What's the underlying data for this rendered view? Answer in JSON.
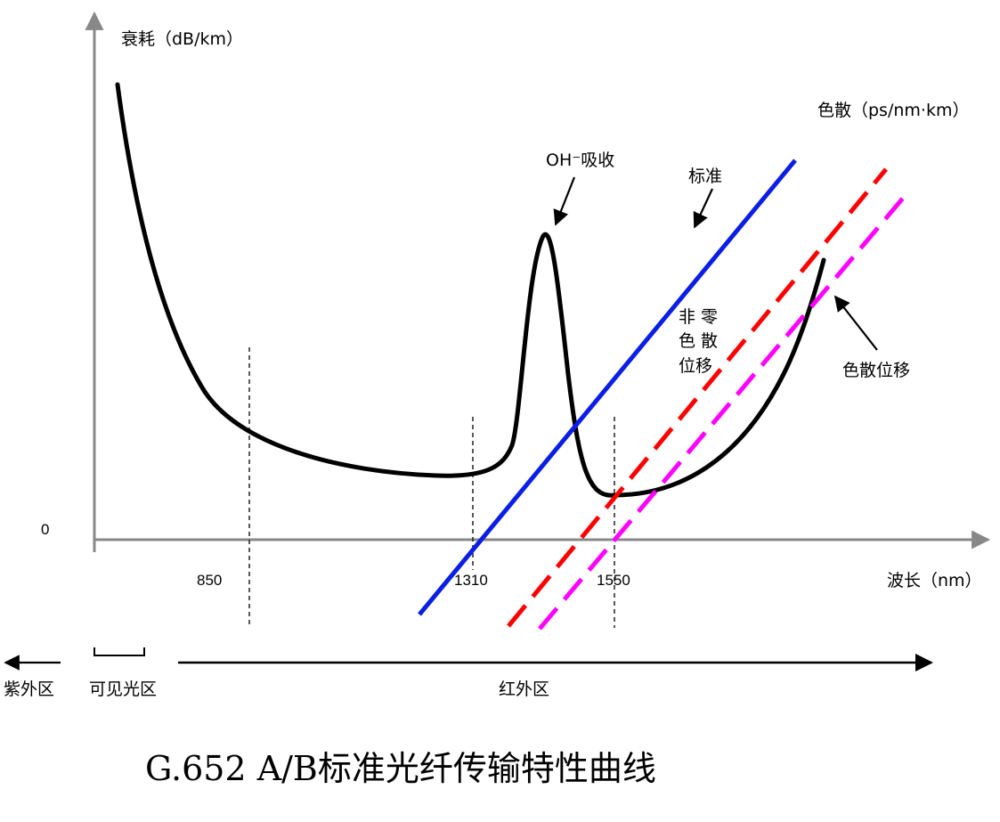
{
  "chart_data": {
    "type": "line",
    "title": "G.652 A/B标准光纤传输特性曲线",
    "ylabel": "衰耗（dB/km）",
    "ylabel_right": "色散（ps/nm·km）",
    "xlabel": "波长（nm）",
    "y_zero_label": "0",
    "x_ticks": [
      "850",
      "1310",
      "1550"
    ],
    "annotations": {
      "oh": "OH⁻吸收",
      "standard": "标准",
      "nzdsf": [
        "非 零",
        "色 散",
        "位移"
      ],
      "dsf": "色散位移"
    },
    "regions": {
      "uv": "紫外区",
      "visible": "可见光区",
      "ir": "红外区"
    },
    "series": [
      {
        "kind": "attenuation",
        "color": "#000000"
      },
      {
        "name": "标准",
        "kind": "dispersion",
        "color": "#0a1ee6"
      },
      {
        "name": "非零色散位移",
        "kind": "dispersion",
        "color": "#ff0000"
      },
      {
        "name": "色散位移",
        "kind": "dispersion",
        "color": "#ff00ff"
      }
    ]
  }
}
